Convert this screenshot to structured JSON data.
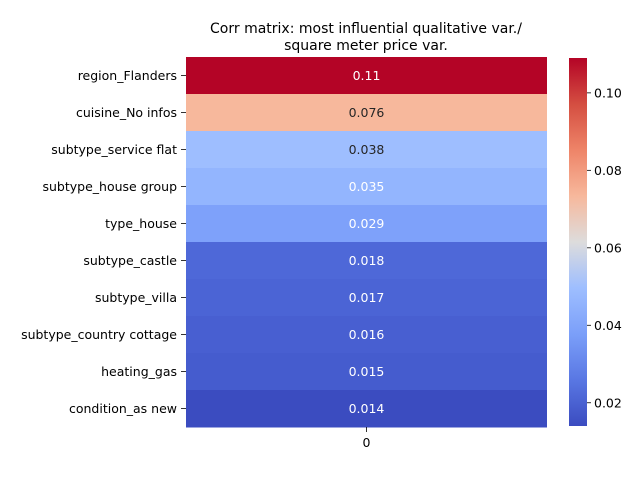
{
  "chart_data": {
    "type": "heatmap",
    "title_line1": "Corr matrix: most influential qualitative var./",
    "title_line2": "square meter price var.",
    "rows": [
      "region_Flanders",
      "cuisine_No infos",
      "subtype_service flat",
      "subtype_house group",
      "type_house",
      "subtype_castle",
      "subtype_villa",
      "subtype_country cottage",
      "heating_gas",
      "condition_as new"
    ],
    "columns": [
      "0"
    ],
    "values": [
      0.109,
      0.076,
      0.038,
      0.035,
      0.029,
      0.018,
      0.017,
      0.016,
      0.015,
      0.014
    ],
    "value_labels": [
      "0.11",
      "0.076",
      "0.038",
      "0.035",
      "0.029",
      "0.018",
      "0.017",
      "0.016",
      "0.015",
      "0.014"
    ],
    "cell_colors": [
      "#b40426",
      "#f7b89c",
      "#9ebeff",
      "#93b5fe",
      "#7ea1fa",
      "#4e68d8",
      "#4b64d5",
      "#485fd1",
      "#455cce",
      "#3b4cc0"
    ],
    "label_colors": [
      "#ffffff",
      "#262626",
      "#262626",
      "#ffffff",
      "#ffffff",
      "#ffffff",
      "#ffffff",
      "#ffffff",
      "#ffffff",
      "#ffffff"
    ],
    "colormap": "coolwarm",
    "colorbar": {
      "range": [
        0.014,
        0.109
      ],
      "ticks": [
        0.02,
        0.04,
        0.06,
        0.08,
        0.1
      ],
      "tick_labels": [
        "0.02",
        "0.04",
        "0.06",
        "0.08",
        "0.10"
      ]
    },
    "grid": false,
    "legend": "colorbar-right"
  }
}
